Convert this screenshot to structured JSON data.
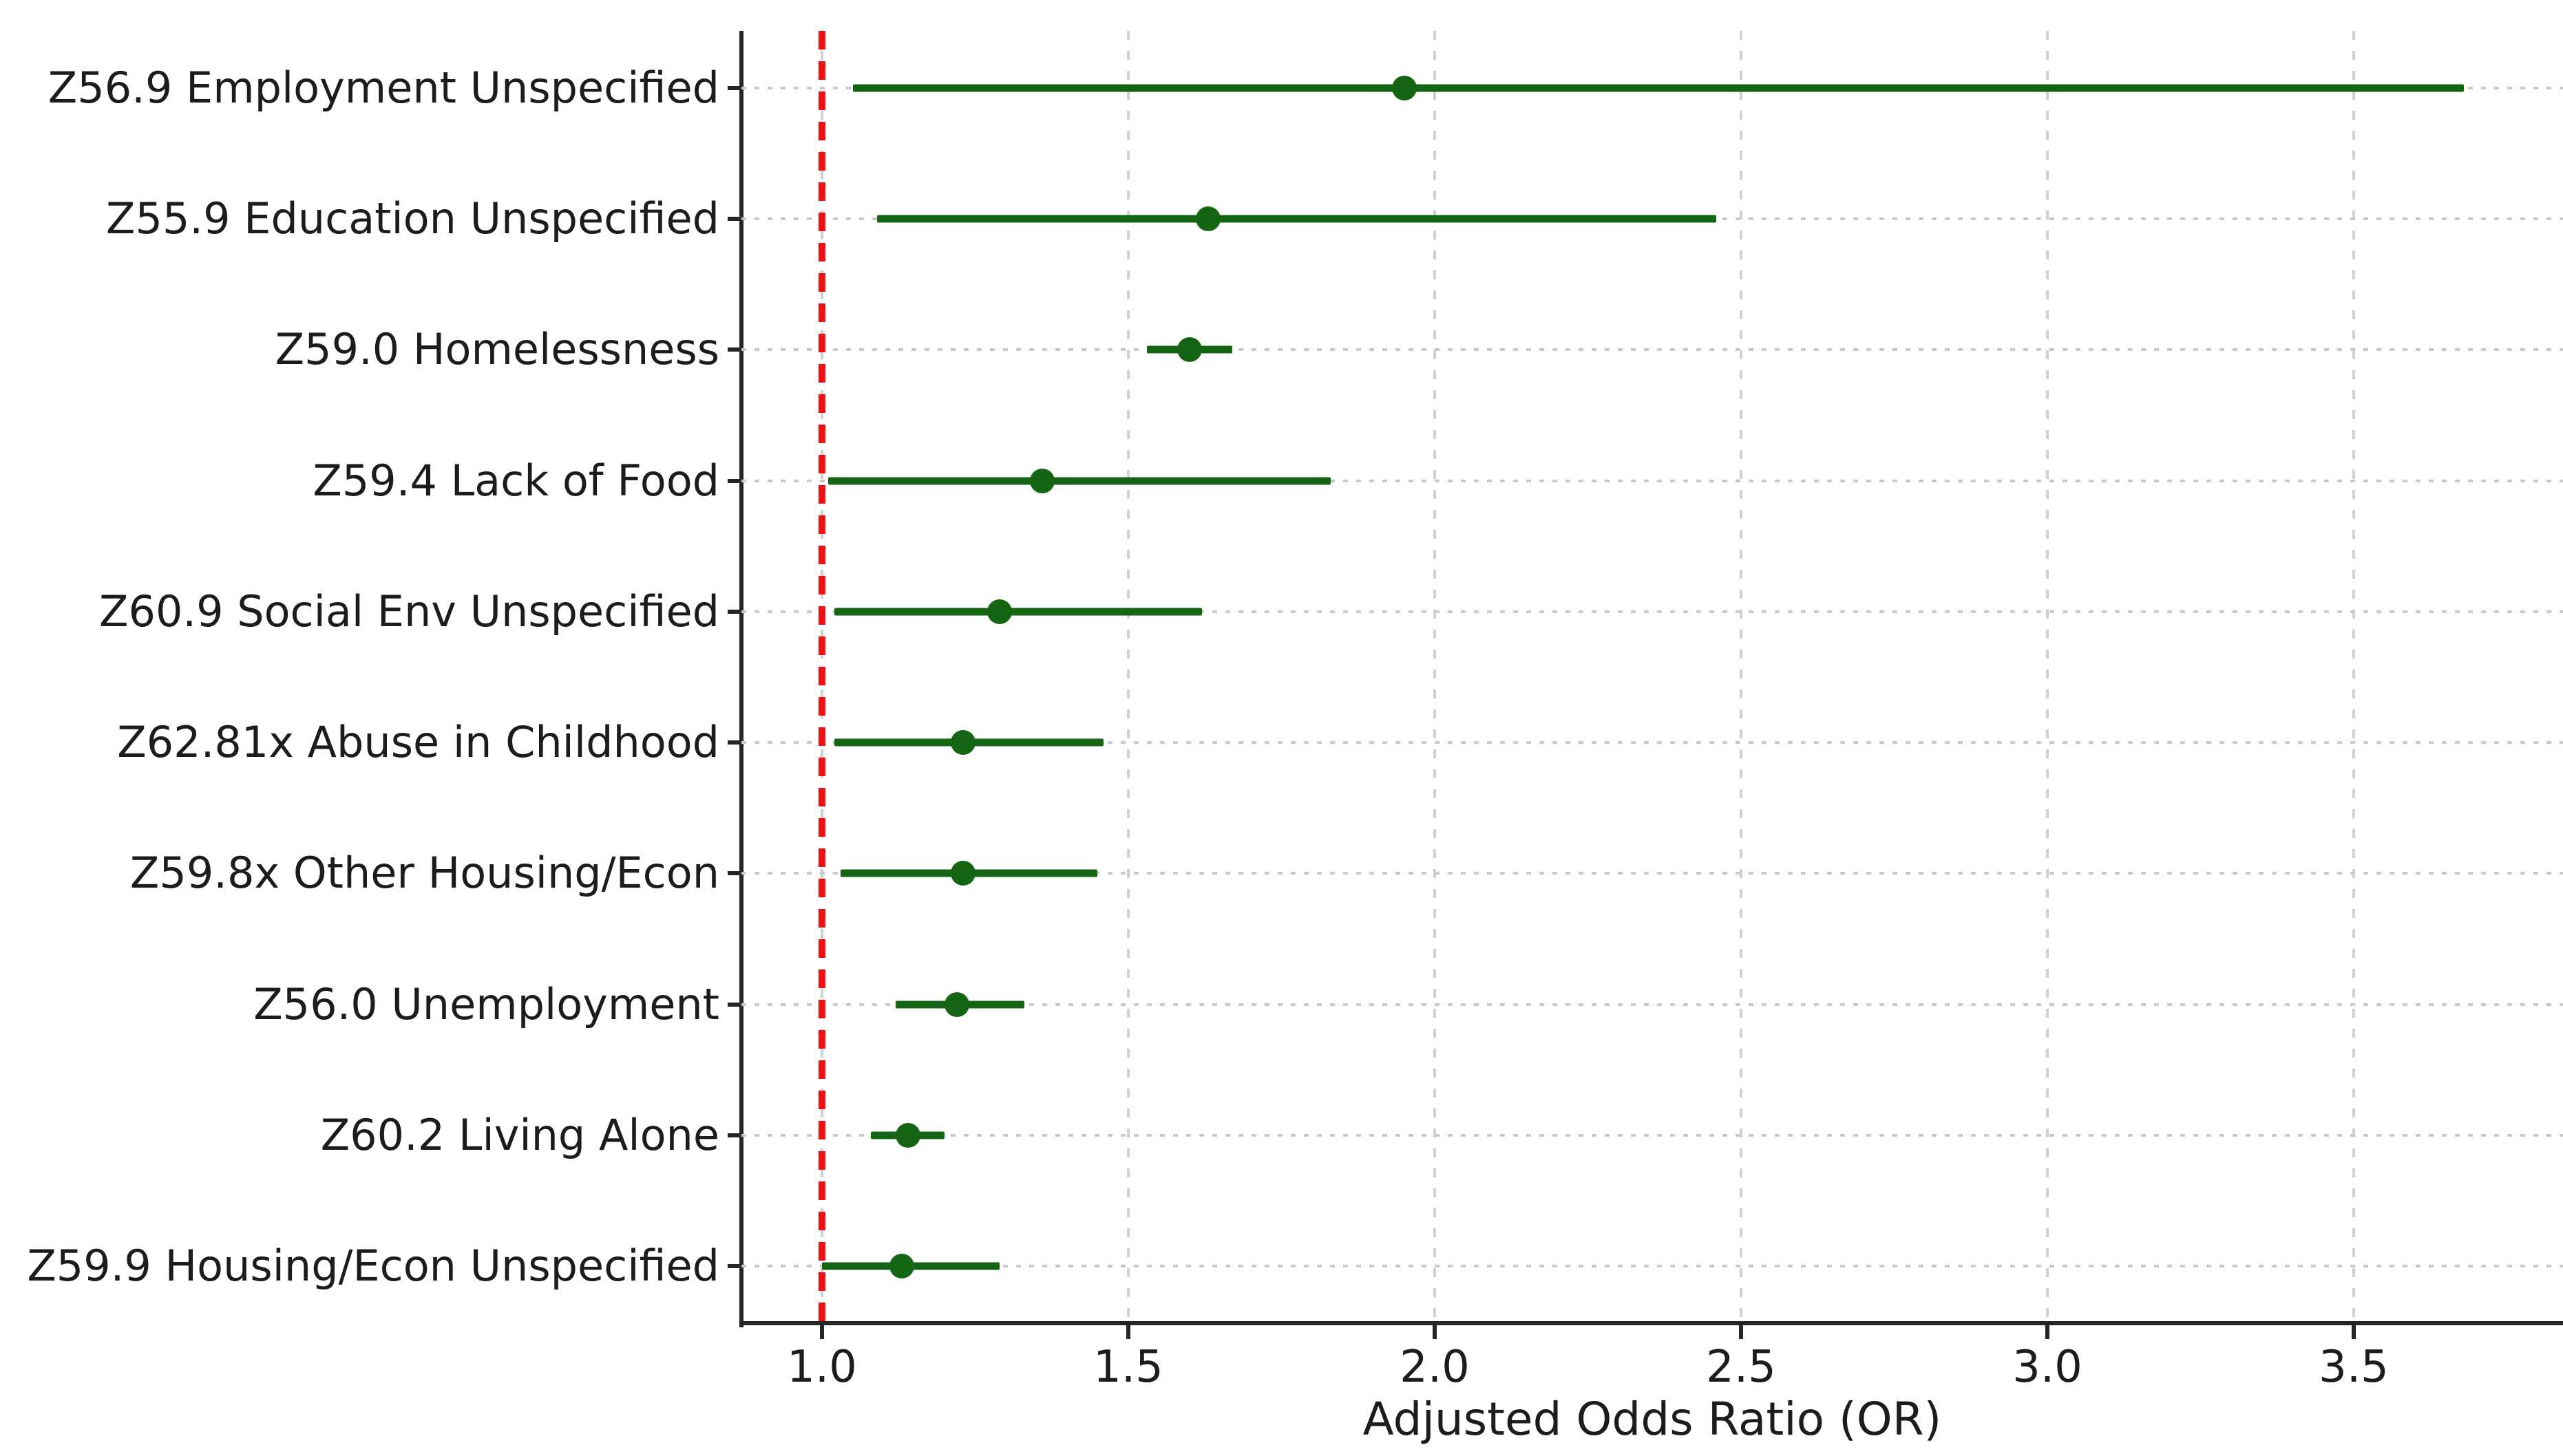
{
  "figure": {
    "xlabel": "Adjusted Odds Ratio (OR)",
    "colors": {
      "point_and_ci": "#146614",
      "reference_line": "#ee1111",
      "gridline": "#c9c9c9",
      "axis": "#262626",
      "text": "#1c1c1c",
      "background": "#ffffff"
    }
  },
  "chart_data": {
    "type": "scatter",
    "subtype": "forest-plot-horizontal-errorbar",
    "title": "",
    "xlabel": "Adjusted Odds Ratio (OR)",
    "ylabel": "",
    "xlim": [
      0.868,
      3.843
    ],
    "x_ticks": [
      "1.0",
      "1.5",
      "2.0",
      "2.5",
      "3.0",
      "3.5"
    ],
    "grid": true,
    "legend_position": "none",
    "reference_line_x": 1.0,
    "marker": "circle",
    "marker_color": "#146614",
    "reference_line_color": "#ee1111",
    "categories": [
      "Z56.9 Employment Unspecified",
      "Z55.9 Education Unspecified",
      "Z59.0 Homelessness",
      "Z59.4 Lack of Food",
      "Z60.9 Social Env Unspecified",
      "Z62.81x Abuse in Childhood",
      "Z59.8x Other Housing/Econ",
      "Z56.0 Unemployment",
      "Z60.2 Living Alone",
      "Z59.9 Housing/Econ Unspecified"
    ],
    "points": [
      {
        "label": "Z56.9 Employment Unspecified",
        "or": 1.95,
        "ci_low": 1.05,
        "ci_high": 3.68
      },
      {
        "label": "Z55.9 Education Unspecified",
        "or": 1.63,
        "ci_low": 1.09,
        "ci_high": 2.46
      },
      {
        "label": "Z59.0 Homelessness",
        "or": 1.6,
        "ci_low": 1.53,
        "ci_high": 1.67
      },
      {
        "label": "Z59.4 Lack of Food",
        "or": 1.36,
        "ci_low": 1.01,
        "ci_high": 1.83
      },
      {
        "label": "Z60.9 Social Env Unspecified",
        "or": 1.29,
        "ci_low": 1.02,
        "ci_high": 1.62
      },
      {
        "label": "Z62.81x Abuse in Childhood",
        "or": 1.23,
        "ci_low": 1.02,
        "ci_high": 1.46
      },
      {
        "label": "Z59.8x Other Housing/Econ",
        "or": 1.23,
        "ci_low": 1.03,
        "ci_high": 1.45
      },
      {
        "label": "Z56.0 Unemployment",
        "or": 1.22,
        "ci_low": 1.12,
        "ci_high": 1.33
      },
      {
        "label": "Z60.2 Living Alone",
        "or": 1.14,
        "ci_low": 1.08,
        "ci_high": 1.2
      },
      {
        "label": "Z59.9 Housing/Econ Unspecified",
        "or": 1.13,
        "ci_low": 1.0,
        "ci_high": 1.29
      }
    ]
  }
}
